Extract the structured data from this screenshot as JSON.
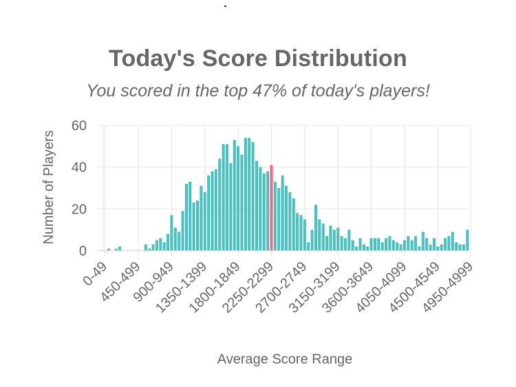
{
  "header": {
    "title": "Today's Score Distribution",
    "subtitle": "You scored in the top 47% of today's players!"
  },
  "chart_data": {
    "type": "bar",
    "xlabel": "Average Score Range",
    "ylabel": "Number of Players",
    "ylim": [
      0,
      60
    ],
    "yticks": [
      0,
      20,
      40,
      60
    ],
    "grid": true,
    "bin_size": 50,
    "categories_shown": [
      "0-49",
      "450-499",
      "900-949",
      "1350-1399",
      "1800-1849",
      "2250-2299",
      "2700-2749",
      "3150-3199",
      "3600-3649",
      "4050-4099",
      "4500-4549",
      "4950-4999"
    ],
    "highlight_category": "2250-2299",
    "colors": {
      "bar": "#4bc0c0",
      "highlight": "#ff6384",
      "grid": "#e5e5e5",
      "text": "#666666"
    },
    "values": [
      0,
      1,
      0,
      1,
      2,
      0,
      0,
      0,
      0,
      0,
      0,
      3,
      1,
      3,
      5,
      6,
      4,
      8,
      17,
      11,
      9,
      19,
      32,
      33,
      23,
      24,
      31,
      28,
      36,
      38,
      39,
      44,
      51,
      51,
      42,
      53,
      50,
      46,
      54,
      54,
      52,
      43,
      40,
      37,
      38,
      41,
      33,
      30,
      36,
      31,
      28,
      25,
      18,
      17,
      15,
      4,
      10,
      22,
      15,
      13,
      7,
      12,
      10,
      11,
      7,
      6,
      10,
      5,
      2,
      6,
      3,
      2,
      6,
      6,
      6,
      4,
      6,
      7,
      5,
      4,
      3,
      5,
      7,
      5,
      7,
      2,
      9,
      6,
      3,
      6,
      2,
      3,
      6,
      7,
      9,
      4,
      3,
      3,
      10
    ]
  }
}
